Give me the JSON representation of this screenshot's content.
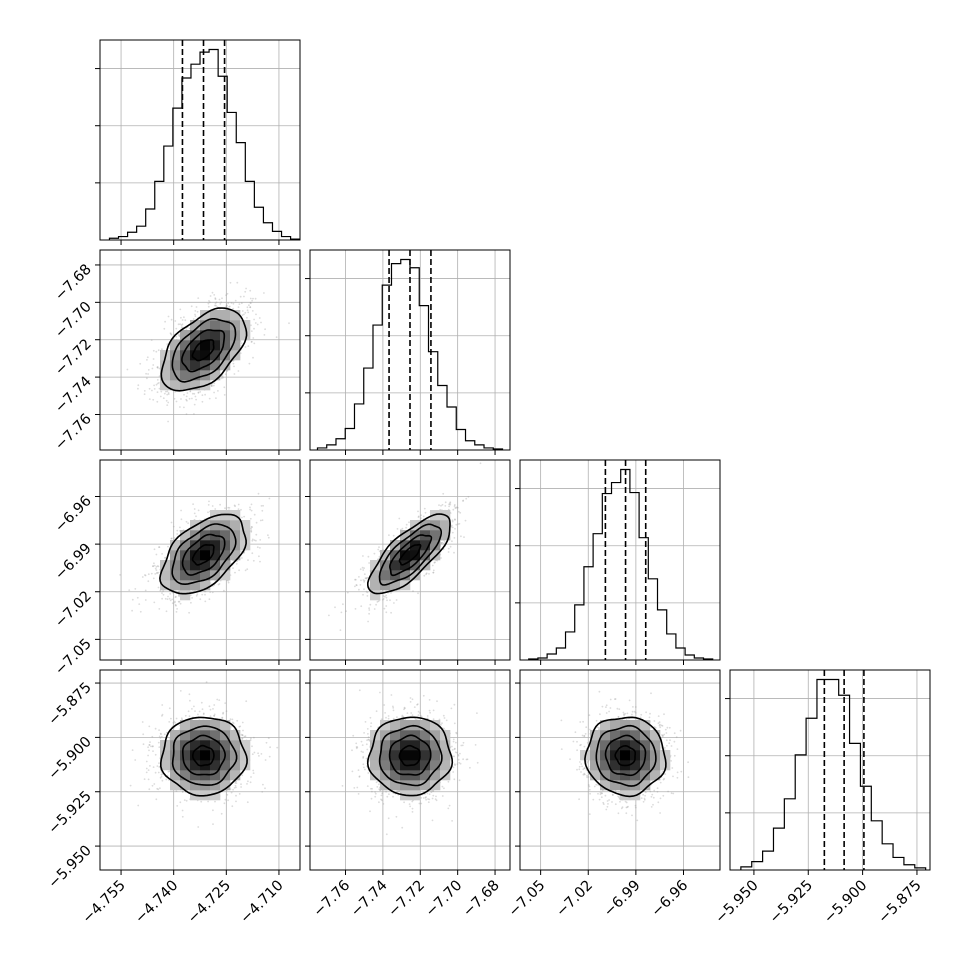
{
  "chart_data": {
    "type": "corner",
    "grid": true,
    "colors": {
      "points": "#9a9a9a",
      "density_high": "#000000",
      "density_low": "#f5f5f5",
      "lines": "#000000"
    },
    "parameters": [
      {
        "range": [
          -4.761,
          -4.704
        ],
        "ticks": [
          -4.755,
          -4.74,
          -4.725,
          -4.71
        ],
        "tick_labels": [
          "−4.755",
          "−4.740",
          "−4.725",
          "−4.710"
        ],
        "mean": -4.7315,
        "std": 0.006,
        "quantiles": [
          -4.7375,
          -4.7315,
          -4.7255
        ],
        "histogram": {
          "range": [
            -4.7583,
            -4.7041
          ],
          "counts": [
            2,
            4,
            9,
            16,
            36,
            68,
            109,
            153,
            188,
            204,
            218,
            221,
            190,
            148,
            113,
            68,
            38,
            20,
            10,
            4,
            1
          ]
        }
      },
      {
        "range": [
          -7.779,
          -7.672
        ],
        "ticks": [
          -7.76,
          -7.74,
          -7.72,
          -7.7,
          -7.68
        ],
        "tick_labels": [
          "−7.76",
          "−7.74",
          "−7.72",
          "−7.70",
          "−7.68"
        ],
        "mean": -7.7255,
        "std": 0.011,
        "quantiles": [
          -7.7367,
          -7.7255,
          -7.7143
        ],
        "histogram": {
          "range": [
            -7.775,
            -7.676
          ],
          "counts": [
            2,
            5,
            11,
            21,
            45,
            80,
            122,
            161,
            182,
            186,
            178,
            141,
            96,
            63,
            42,
            20,
            9,
            5,
            2,
            1
          ]
        }
      },
      {
        "range": [
          -7.063,
          -6.937
        ],
        "ticks": [
          -7.05,
          -7.02,
          -6.99,
          -6.96
        ],
        "tick_labels": [
          "−7.05",
          "−7.02",
          "−6.99",
          "−6.96"
        ],
        "mean": -6.9965,
        "std": 0.0125,
        "quantiles": [
          -7.0092,
          -6.9965,
          -6.9838
        ],
        "histogram": {
          "range": [
            -7.0575,
            -6.9416
          ],
          "counts": [
            1,
            2,
            6,
            12,
            28,
            55,
            93,
            126,
            166,
            177,
            190,
            167,
            122,
            81,
            50,
            26,
            12,
            5,
            2,
            1
          ]
        }
      },
      {
        "range": [
          -5.961,
          -5.869
        ],
        "ticks": [
          -5.95,
          -5.925,
          -5.9,
          -5.875
        ],
        "tick_labels": [
          "−5.950",
          "−5.925",
          "−5.900",
          "−5.875"
        ],
        "mean": -5.9085,
        "std": 0.009,
        "quantiles": [
          -5.9176,
          -5.9085,
          -5.8994
        ],
        "histogram": {
          "range": [
            -5.956,
            -5.871
          ],
          "counts": [
            3,
            8,
            18,
            40,
            68,
            110,
            145,
            182,
            182,
            167,
            121,
            80,
            47,
            25,
            12,
            5,
            2
          ]
        }
      }
    ],
    "correlations": [
      [
        1,
        0.5,
        0.5,
        0.0
      ],
      [
        0.5,
        1,
        0.75,
        0.02
      ],
      [
        0.5,
        0.75,
        1,
        -0.02
      ],
      [
        0.0,
        0.02,
        -0.02,
        1
      ]
    ],
    "contour_levels_sigma": [
      0.5,
      1.0,
      1.5,
      2.0
    ]
  }
}
